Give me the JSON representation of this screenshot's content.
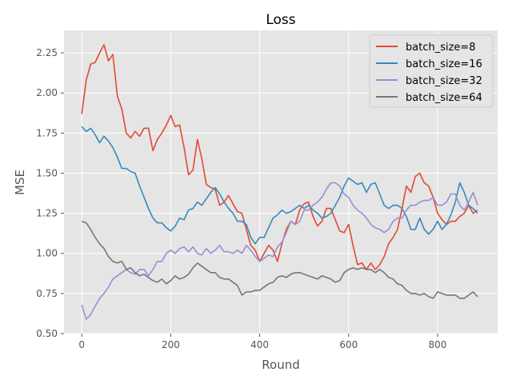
{
  "chart_data": {
    "type": "line",
    "title": "Loss",
    "xlabel": "Round",
    "ylabel": "MSE",
    "xlim": [
      -40,
      935
    ],
    "ylim": [
      0.5,
      2.39
    ],
    "xticks": [
      0,
      200,
      400,
      600,
      800
    ],
    "yticks": [
      0.5,
      0.75,
      1.0,
      1.25,
      1.5,
      1.75,
      2.0,
      2.25
    ],
    "ytick_labels": [
      "0.50",
      "0.75",
      "1.00",
      "1.25",
      "1.50",
      "1.75",
      "2.00",
      "2.25"
    ],
    "grid": true,
    "style": "ggplot",
    "legend_position": "upper right",
    "series": [
      {
        "name": "batch_size=8",
        "color": "#E24A33",
        "x": [
          0,
          10,
          20,
          30,
          40,
          50,
          60,
          70,
          80,
          90,
          100,
          110,
          120,
          130,
          140,
          150,
          160,
          170,
          180,
          190,
          200,
          210,
          220,
          230,
          240,
          250,
          260,
          270,
          280,
          290,
          300,
          310,
          320,
          330,
          340,
          350,
          360,
          370,
          380,
          390,
          400,
          410,
          420,
          430,
          440,
          450,
          460,
          470,
          480,
          490,
          500,
          510,
          520,
          530,
          540,
          550,
          560,
          570,
          580,
          590,
          600,
          610,
          620,
          630,
          640,
          650,
          660,
          670,
          680,
          690,
          700,
          710,
          720,
          730,
          740,
          750,
          760,
          770,
          780,
          790,
          800,
          810,
          820,
          830,
          840,
          850,
          860,
          870,
          880,
          890
        ],
        "values": [
          1.87,
          2.08,
          2.18,
          2.19,
          2.25,
          2.3,
          2.2,
          2.24,
          1.98,
          1.9,
          1.75,
          1.72,
          1.76,
          1.73,
          1.78,
          1.78,
          1.64,
          1.71,
          1.75,
          1.8,
          1.86,
          1.79,
          1.8,
          1.66,
          1.49,
          1.52,
          1.71,
          1.59,
          1.43,
          1.41,
          1.4,
          1.3,
          1.32,
          1.36,
          1.31,
          1.26,
          1.25,
          1.15,
          1.05,
          1.02,
          0.95,
          1.0,
          1.05,
          1.02,
          0.95,
          1.06,
          1.15,
          1.2,
          1.18,
          1.27,
          1.31,
          1.32,
          1.23,
          1.17,
          1.2,
          1.28,
          1.28,
          1.21,
          1.14,
          1.13,
          1.18,
          1.05,
          0.93,
          0.94,
          0.9,
          0.94,
          0.9,
          0.93,
          0.98,
          1.06,
          1.1,
          1.15,
          1.28,
          1.42,
          1.38,
          1.48,
          1.5,
          1.44,
          1.42,
          1.35,
          1.25,
          1.21,
          1.18,
          1.2,
          1.2,
          1.23,
          1.25,
          1.3,
          1.25,
          1.27
        ]
      },
      {
        "name": "batch_size=16",
        "color": "#348ABD",
        "x": [
          0,
          10,
          20,
          30,
          40,
          50,
          60,
          70,
          80,
          90,
          100,
          110,
          120,
          130,
          140,
          150,
          160,
          170,
          180,
          190,
          200,
          210,
          220,
          230,
          240,
          250,
          260,
          270,
          280,
          290,
          300,
          310,
          320,
          330,
          340,
          350,
          360,
          370,
          380,
          390,
          400,
          410,
          420,
          430,
          440,
          450,
          460,
          470,
          480,
          490,
          500,
          510,
          520,
          530,
          540,
          550,
          560,
          570,
          580,
          590,
          600,
          610,
          620,
          630,
          640,
          650,
          660,
          670,
          680,
          690,
          700,
          710,
          720,
          730,
          740,
          750,
          760,
          770,
          780,
          790,
          800,
          810,
          820,
          830,
          840,
          850,
          860,
          870,
          880,
          890
        ],
        "values": [
          1.79,
          1.76,
          1.78,
          1.74,
          1.69,
          1.73,
          1.7,
          1.66,
          1.6,
          1.53,
          1.53,
          1.51,
          1.5,
          1.42,
          1.35,
          1.28,
          1.22,
          1.19,
          1.19,
          1.16,
          1.14,
          1.17,
          1.22,
          1.21,
          1.27,
          1.28,
          1.32,
          1.3,
          1.34,
          1.38,
          1.41,
          1.37,
          1.32,
          1.28,
          1.25,
          1.2,
          1.2,
          1.18,
          1.1,
          1.06,
          1.1,
          1.1,
          1.16,
          1.22,
          1.24,
          1.27,
          1.25,
          1.26,
          1.28,
          1.3,
          1.28,
          1.3,
          1.27,
          1.25,
          1.22,
          1.23,
          1.25,
          1.3,
          1.35,
          1.42,
          1.47,
          1.45,
          1.43,
          1.44,
          1.38,
          1.43,
          1.44,
          1.37,
          1.3,
          1.28,
          1.3,
          1.3,
          1.28,
          1.23,
          1.15,
          1.15,
          1.22,
          1.15,
          1.12,
          1.15,
          1.2,
          1.15,
          1.18,
          1.24,
          1.32,
          1.44,
          1.38,
          1.3,
          1.28,
          1.25
        ]
      },
      {
        "name": "batch_size=32",
        "color": "#988ED5",
        "x": [
          0,
          10,
          20,
          30,
          40,
          50,
          60,
          70,
          80,
          90,
          100,
          110,
          120,
          130,
          140,
          150,
          160,
          170,
          180,
          190,
          200,
          210,
          220,
          230,
          240,
          250,
          260,
          270,
          280,
          290,
          300,
          310,
          320,
          330,
          340,
          350,
          360,
          370,
          380,
          390,
          400,
          410,
          420,
          430,
          440,
          450,
          460,
          470,
          480,
          490,
          500,
          510,
          520,
          530,
          540,
          550,
          560,
          570,
          580,
          590,
          600,
          610,
          620,
          630,
          640,
          650,
          660,
          670,
          680,
          690,
          700,
          710,
          720,
          730,
          740,
          750,
          760,
          770,
          780,
          790,
          800,
          810,
          820,
          830,
          840,
          850,
          860,
          870,
          880,
          890
        ],
        "values": [
          0.68,
          0.59,
          0.62,
          0.67,
          0.72,
          0.75,
          0.79,
          0.84,
          0.86,
          0.88,
          0.9,
          0.88,
          0.87,
          0.9,
          0.9,
          0.86,
          0.9,
          0.95,
          0.95,
          1.0,
          1.02,
          1.0,
          1.03,
          1.04,
          1.01,
          1.04,
          1.0,
          0.99,
          1.03,
          1.0,
          1.02,
          1.05,
          1.01,
          1.01,
          1.0,
          1.02,
          1.0,
          1.05,
          1.02,
          0.98,
          0.95,
          0.97,
          0.99,
          0.98,
          1.04,
          1.07,
          1.13,
          1.2,
          1.18,
          1.2,
          1.27,
          1.27,
          1.3,
          1.32,
          1.35,
          1.4,
          1.44,
          1.44,
          1.42,
          1.37,
          1.35,
          1.3,
          1.27,
          1.25,
          1.22,
          1.18,
          1.16,
          1.15,
          1.13,
          1.15,
          1.2,
          1.22,
          1.22,
          1.27,
          1.3,
          1.3,
          1.32,
          1.33,
          1.33,
          1.35,
          1.3,
          1.3,
          1.32,
          1.37,
          1.37,
          1.3,
          1.27,
          1.32,
          1.38,
          1.3
        ]
      },
      {
        "name": "batch_size=64",
        "color": "#777777",
        "x": [
          0,
          10,
          20,
          30,
          40,
          50,
          60,
          70,
          80,
          90,
          100,
          110,
          120,
          130,
          140,
          150,
          160,
          170,
          180,
          190,
          200,
          210,
          220,
          230,
          240,
          250,
          260,
          270,
          280,
          290,
          300,
          310,
          320,
          330,
          340,
          350,
          360,
          370,
          380,
          390,
          400,
          410,
          420,
          430,
          440,
          450,
          460,
          470,
          480,
          490,
          500,
          510,
          520,
          530,
          540,
          550,
          560,
          570,
          580,
          590,
          600,
          610,
          620,
          630,
          640,
          650,
          660,
          670,
          680,
          690,
          700,
          710,
          720,
          730,
          740,
          750,
          760,
          770,
          780,
          790,
          800,
          810,
          820,
          830,
          840,
          850,
          860,
          870,
          880,
          890
        ],
        "values": [
          1.2,
          1.19,
          1.15,
          1.1,
          1.06,
          1.03,
          0.98,
          0.95,
          0.94,
          0.95,
          0.9,
          0.91,
          0.88,
          0.86,
          0.87,
          0.85,
          0.83,
          0.82,
          0.84,
          0.81,
          0.83,
          0.86,
          0.84,
          0.85,
          0.87,
          0.91,
          0.94,
          0.92,
          0.9,
          0.88,
          0.88,
          0.85,
          0.84,
          0.84,
          0.82,
          0.8,
          0.74,
          0.76,
          0.76,
          0.77,
          0.77,
          0.79,
          0.81,
          0.82,
          0.85,
          0.86,
          0.85,
          0.87,
          0.88,
          0.88,
          0.87,
          0.86,
          0.85,
          0.84,
          0.86,
          0.85,
          0.84,
          0.82,
          0.83,
          0.88,
          0.9,
          0.91,
          0.9,
          0.91,
          0.9,
          0.9,
          0.88,
          0.9,
          0.88,
          0.85,
          0.84,
          0.81,
          0.8,
          0.77,
          0.75,
          0.75,
          0.74,
          0.75,
          0.73,
          0.72,
          0.76,
          0.75,
          0.74,
          0.74,
          0.74,
          0.72,
          0.72,
          0.74,
          0.76,
          0.73
        ]
      }
    ]
  },
  "colors": {
    "plot_background": "#E5E5E5",
    "grid": "#FFFFFF",
    "tick_text": "#555555",
    "title_text": "#000000"
  }
}
